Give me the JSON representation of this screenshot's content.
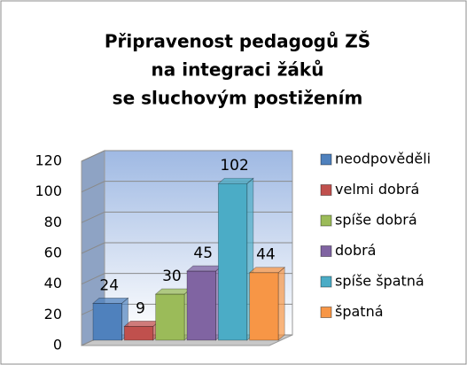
{
  "chart_data": {
    "type": "bar3d",
    "title": [
      "Připravenost pedagogů ZŠ",
      "na integraci žáků",
      "se sluchovým postižením"
    ],
    "series": [
      {
        "name": "neodpověděli",
        "color": "#4f81bd",
        "values": [
          24
        ]
      },
      {
        "name": "velmi dobrá",
        "color": "#c0504d",
        "values": [
          9
        ]
      },
      {
        "name": "spíše dobrá",
        "color": "#9bbb59",
        "values": [
          30
        ]
      },
      {
        "name": "dobrá",
        "color": "#8064a2",
        "values": [
          45
        ]
      },
      {
        "name": "spíše špatná",
        "color": "#4bacc6",
        "values": [
          102
        ]
      },
      {
        "name": "špatná",
        "color": "#f79646",
        "values": [
          44
        ]
      }
    ],
    "ylim": [
      0,
      120
    ],
    "yticks": [
      0,
      20,
      40,
      60,
      80,
      100,
      120
    ],
    "grid": true,
    "legend": "right"
  }
}
